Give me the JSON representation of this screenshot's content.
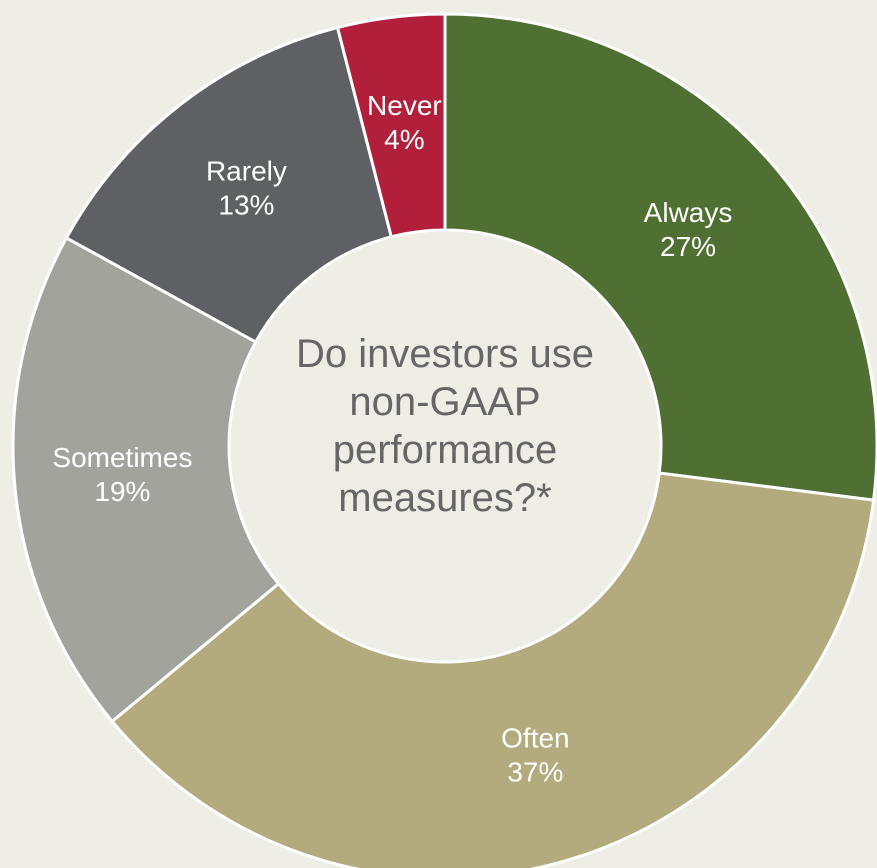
{
  "chart_data": {
    "type": "donut",
    "title": "Do investors use non-GAAP performance measures?*",
    "categories": [
      "Always",
      "Often",
      "Sometimes",
      "Rarely",
      "Never"
    ],
    "values": [
      27,
      37,
      19,
      13,
      4
    ],
    "value_labels": [
      "27%",
      "37%",
      "19%",
      "13%",
      "4%"
    ],
    "colors": [
      "#4f7032",
      "#b3aa7d",
      "#a3a39e",
      "#5f6063",
      "#b21f3a"
    ]
  }
}
